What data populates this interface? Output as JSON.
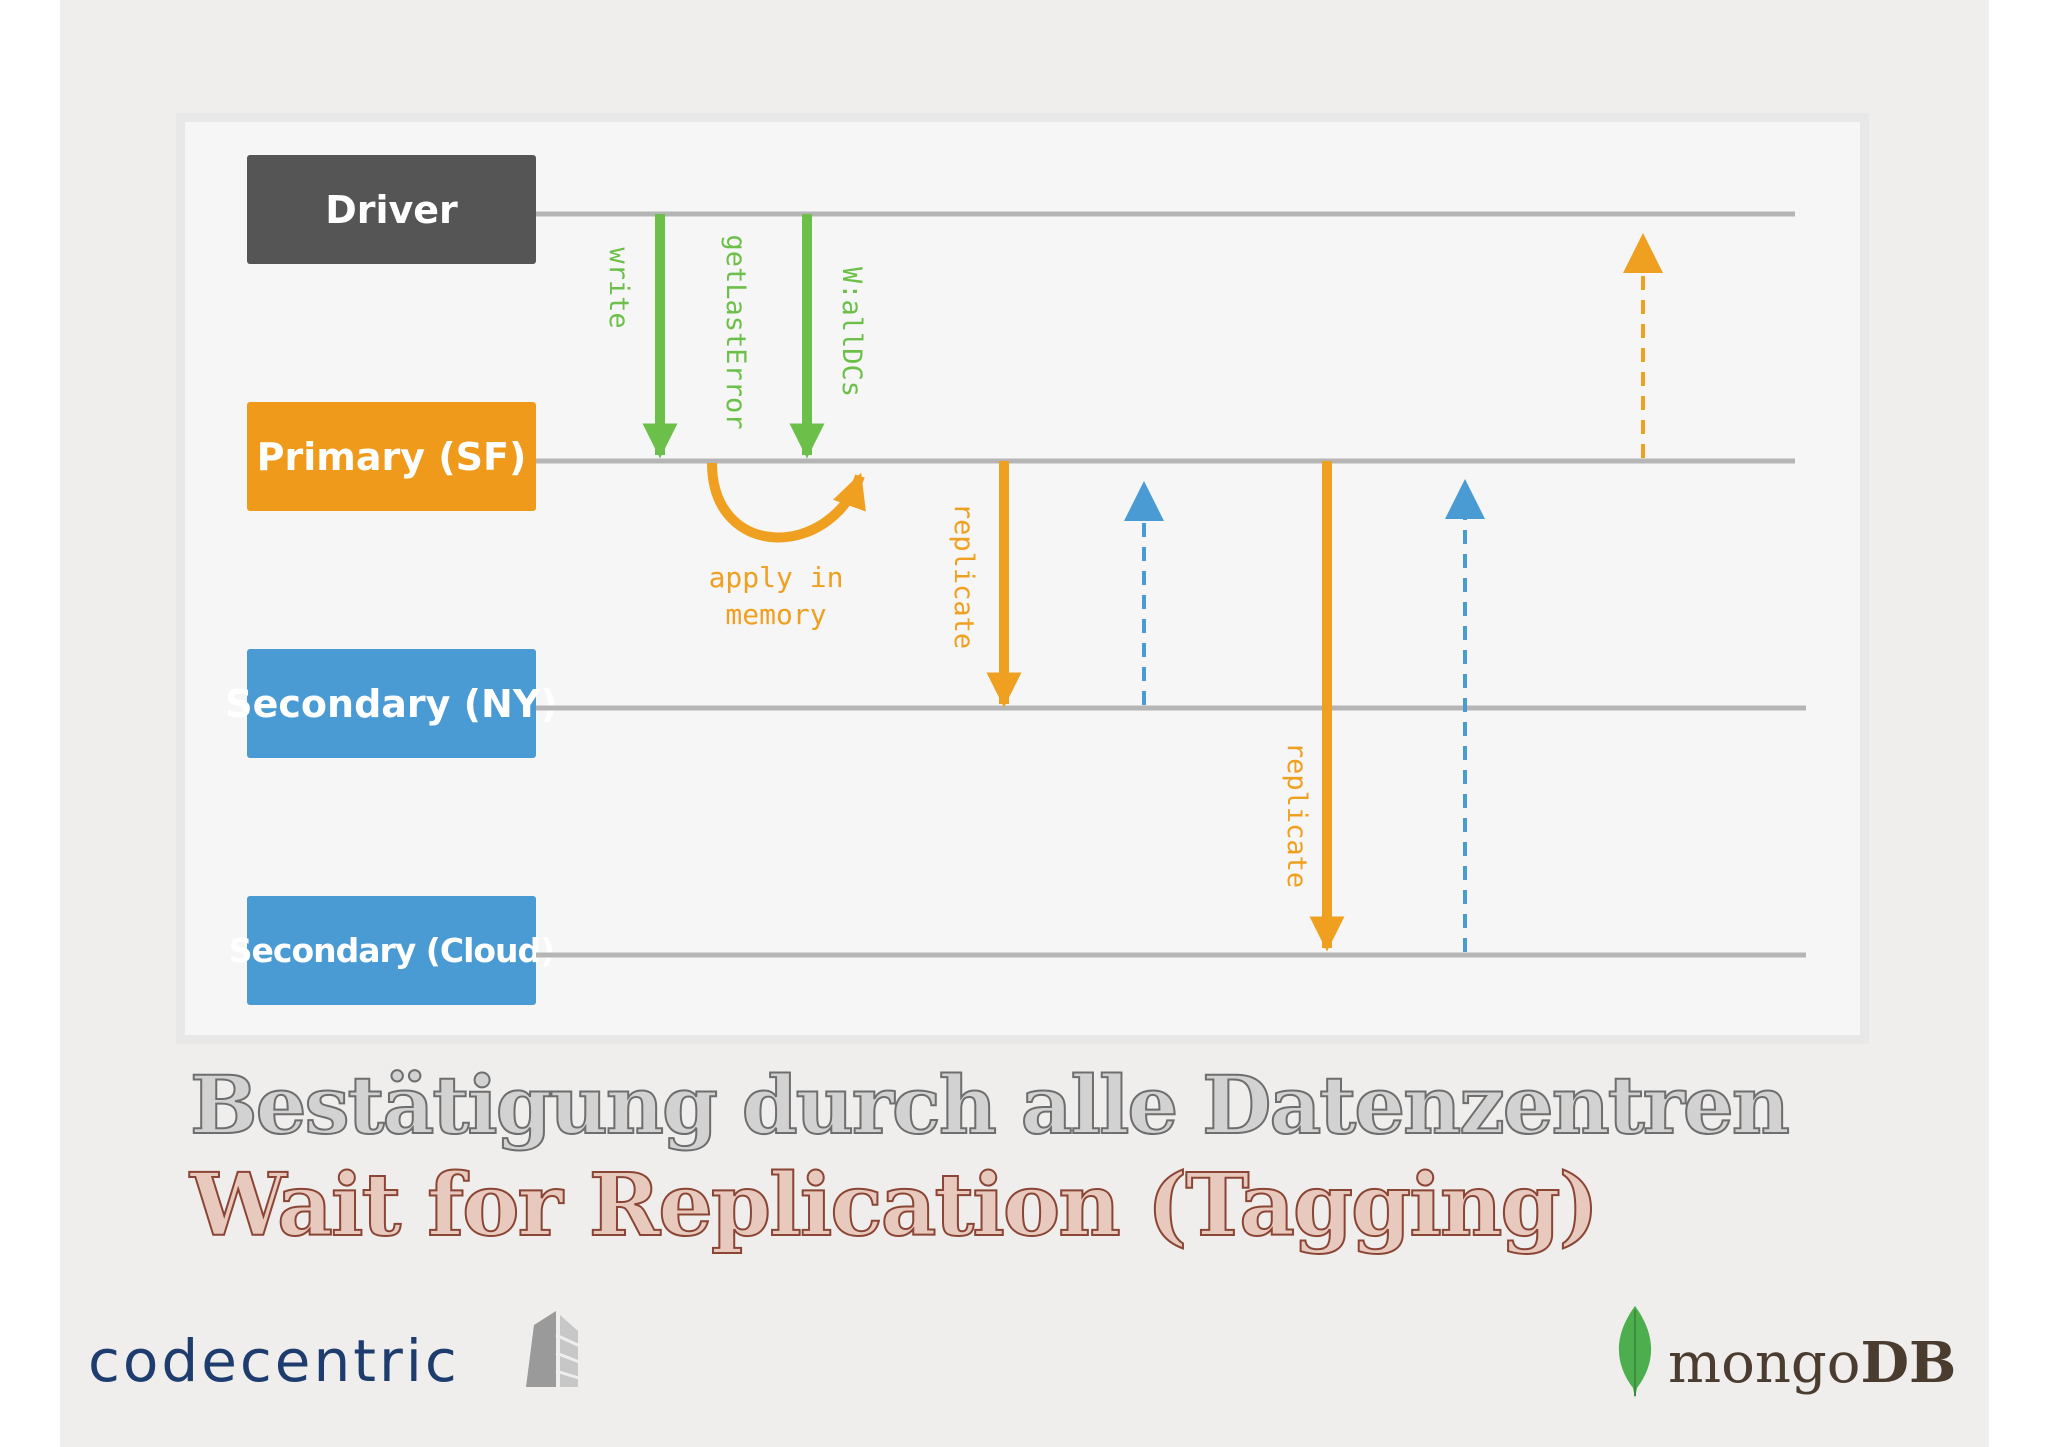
{
  "actors": [
    {
      "label": "Driver",
      "color": "#555555"
    },
    {
      "label": "Primary (SF)",
      "color": "#f09a1c"
    },
    {
      "label": "Secondary (NY)",
      "color": "#4a9bd4"
    },
    {
      "label": "Secondary (Cloud)",
      "color": "#4a9bd4"
    }
  ],
  "messages": {
    "write": "write",
    "getlasterror": "getLastError",
    "wall": "W:allDCs",
    "apply_line1": "apply in",
    "apply_line2": "memory",
    "replicate_ny": "replicate",
    "replicate_cloud": "replicate"
  },
  "colors": {
    "green": "#6cc04a",
    "orange": "#f0a020",
    "blue": "#4a9bd4",
    "lifeline": "#b5b5b5"
  },
  "title_de": "Bestätigung durch alle Datenzentren",
  "title_en": "Wait for Replication (Tagging)",
  "logos": {
    "left": "codecentric",
    "right_a": "mongo",
    "right_b": "DB"
  }
}
